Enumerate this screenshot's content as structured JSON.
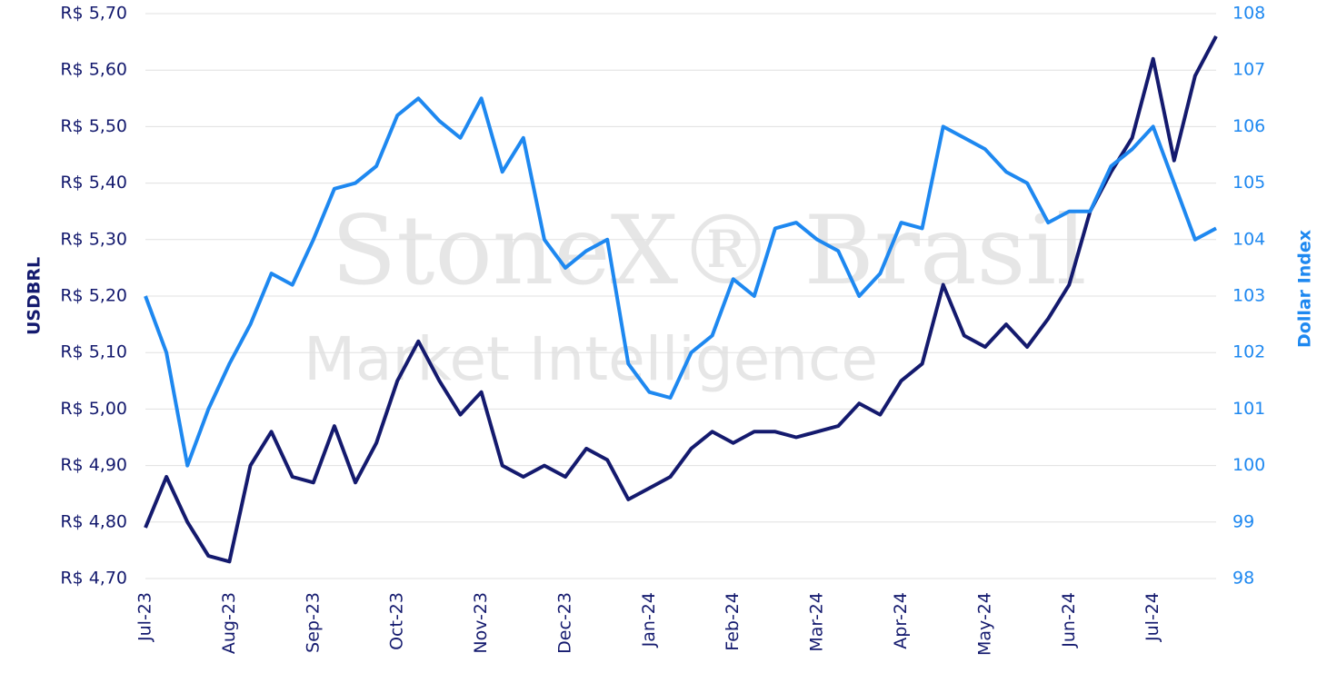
{
  "chart_data": {
    "type": "line",
    "watermark": [
      "StoneX® Brasil",
      "Market Intelligence"
    ],
    "y_label": "USDBRL",
    "y2_label": "Dollar Index",
    "categories": [
      "Jul-23",
      null,
      null,
      null,
      "Aug-23",
      null,
      null,
      null,
      "Sep-23",
      null,
      null,
      null,
      "Oct-23",
      null,
      null,
      null,
      "Nov-23",
      null,
      null,
      null,
      "Dec-23",
      null,
      null,
      null,
      "Jan-24",
      null,
      null,
      null,
      "Feb-24",
      null,
      null,
      null,
      "Mar-24",
      null,
      null,
      null,
      "Apr-24",
      null,
      null,
      null,
      "May-24",
      null,
      null,
      null,
      "Jun-24",
      null,
      null,
      null,
      "Jul-24",
      null,
      null,
      null
    ],
    "series": [
      {
        "name": "USDBRL",
        "color": "#141a6e",
        "axis": "y",
        "values": [
          4.79,
          4.88,
          4.8,
          4.74,
          4.73,
          4.9,
          4.96,
          4.88,
          4.87,
          4.97,
          4.87,
          4.94,
          5.05,
          5.12,
          5.05,
          4.99,
          5.03,
          4.9,
          4.88,
          4.9,
          4.88,
          4.93,
          4.91,
          4.84,
          4.86,
          4.88,
          4.93,
          4.96,
          4.94,
          4.96,
          4.96,
          4.95,
          4.96,
          4.97,
          5.01,
          4.99,
          5.05,
          5.08,
          5.22,
          5.13,
          5.11,
          5.15,
          5.11,
          5.16,
          5.22,
          5.35,
          5.42,
          5.48,
          5.62,
          5.44,
          5.59,
          5.66
        ]
      },
      {
        "name": "Dollar Index",
        "color": "#1e88f0",
        "axis": "y2",
        "values": [
          103.0,
          102.0,
          100.0,
          101.0,
          101.8,
          102.5,
          103.4,
          103.2,
          104.0,
          104.9,
          105.0,
          105.3,
          106.2,
          106.5,
          106.1,
          105.8,
          106.5,
          105.2,
          105.8,
          104.0,
          103.5,
          103.8,
          104.0,
          101.8,
          101.3,
          101.2,
          102.0,
          102.3,
          103.3,
          103.0,
          104.2,
          104.3,
          104.0,
          103.8,
          103.0,
          103.4,
          104.3,
          104.2,
          106.0,
          105.8,
          105.6,
          105.2,
          105.0,
          104.3,
          104.5,
          104.5,
          105.3,
          105.6,
          106.0,
          105.0,
          104.0,
          104.2
        ]
      }
    ],
    "ylim": [
      4.7,
      5.7
    ],
    "yticks": [
      {
        "value": 4.7,
        "label": "R$ 4,70"
      },
      {
        "value": 4.8,
        "label": "R$ 4,80"
      },
      {
        "value": 4.9,
        "label": "R$ 4,90"
      },
      {
        "value": 5.0,
        "label": "R$ 5,00"
      },
      {
        "value": 5.1,
        "label": "R$ 5,10"
      },
      {
        "value": 5.2,
        "label": "R$ 5,20"
      },
      {
        "value": 5.3,
        "label": "R$ 5,30"
      },
      {
        "value": 5.4,
        "label": "R$ 5,40"
      },
      {
        "value": 5.5,
        "label": "R$ 5,50"
      },
      {
        "value": 5.6,
        "label": "R$ 5,60"
      },
      {
        "value": 5.7,
        "label": "R$ 5,70"
      }
    ],
    "y2lim": [
      98,
      108
    ],
    "y2ticks": [
      98,
      99,
      100,
      101,
      102,
      103,
      104,
      105,
      106,
      107,
      108
    ],
    "grid": true
  }
}
